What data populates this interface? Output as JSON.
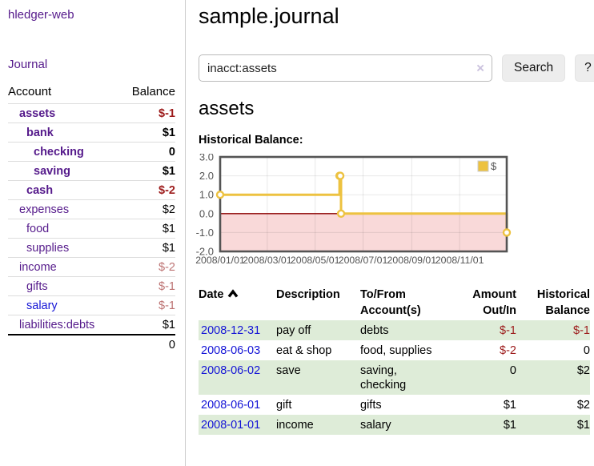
{
  "app": {
    "name": "hledger-web"
  },
  "sidebar": {
    "journal_link": "Journal",
    "table": {
      "headers": {
        "account": "Account",
        "balance": "Balance"
      },
      "rows": [
        {
          "account": "assets",
          "balance": "$-1",
          "indent": 1,
          "bold": true
        },
        {
          "account": "bank",
          "balance": "$1",
          "indent": 2,
          "bold": true
        },
        {
          "account": "checking",
          "balance": "0",
          "indent": 3,
          "bold": true
        },
        {
          "account": "saving",
          "balance": "$1",
          "indent": 3,
          "bold": true
        },
        {
          "account": "cash",
          "balance": "$-2",
          "indent": 2,
          "bold": true
        },
        {
          "account": "expenses",
          "balance": "$2",
          "indent": 1,
          "bold": false
        },
        {
          "account": "food",
          "balance": "$1",
          "indent": 2,
          "bold": false
        },
        {
          "account": "supplies",
          "balance": "$1",
          "indent": 2,
          "bold": false
        },
        {
          "account": "income",
          "balance": "$-2",
          "indent": 1,
          "bold": false
        },
        {
          "account": "gifts",
          "balance": "$-1",
          "indent": 2,
          "bold": false
        },
        {
          "account": "salary",
          "balance": "$-1",
          "indent": 2,
          "bold": false,
          "blue": true
        },
        {
          "account": "liabilities:debts",
          "balance": "$1",
          "indent": 1,
          "bold": false
        }
      ],
      "total": "0"
    }
  },
  "main": {
    "title": "sample.journal",
    "search": {
      "value": "inacct:assets",
      "clear_icon": "×",
      "button": "Search",
      "help_button": "?"
    },
    "account_heading": "assets"
  },
  "chart_data": {
    "type": "line",
    "title": "Historical Balance:",
    "step": true,
    "series": [
      {
        "name": "$",
        "color": "#edc240",
        "points": [
          {
            "x": "2008-01-01",
            "y": 1
          },
          {
            "x": "2008-06-01",
            "y": 2
          },
          {
            "x": "2008-06-02",
            "y": 2
          },
          {
            "x": "2008-06-03",
            "y": 0
          },
          {
            "x": "2008-12-31",
            "y": -1
          }
        ]
      }
    ],
    "x_ticks": [
      "2008/01/01",
      "2008/03/01",
      "2008/05/01",
      "2008/07/01",
      "2008/09/01",
      "2008/11/01"
    ],
    "y_ticks": [
      3.0,
      2.0,
      1.0,
      0.0,
      -1.0,
      -2.0
    ],
    "xlim": [
      "2008/01/01",
      "2008/12/31"
    ],
    "ylim": [
      -2,
      3
    ],
    "grid": true,
    "legend": {
      "label": "$",
      "position": "top-right"
    },
    "colors": {
      "border": "#545454",
      "gridline": "rgba(0,0,0,0.09)",
      "zero_line": "#8b0000",
      "negative_region": "#f9d9d9",
      "tick_text": "#545454",
      "marker_fill": "#ffffff"
    }
  },
  "register": {
    "columns": [
      {
        "label": "Date",
        "align": "left",
        "sorted": "asc"
      },
      {
        "label": "Description",
        "align": "left"
      },
      {
        "label": "To/From\nAccount(s)",
        "align": "left"
      },
      {
        "label": "Amount\nOut/In",
        "align": "right"
      },
      {
        "label": "Historical\nBalance",
        "align": "right"
      }
    ],
    "rows": [
      {
        "date": "2008-12-31",
        "description": "pay off",
        "accounts": "debts",
        "amount": "$-1",
        "balance": "$-1"
      },
      {
        "date": "2008-06-03",
        "description": "eat & shop",
        "accounts": "food, supplies",
        "amount": "$-2",
        "balance": "0"
      },
      {
        "date": "2008-06-02",
        "description": "save",
        "accounts": "saving,\nchecking",
        "amount": "0",
        "balance": "$2"
      },
      {
        "date": "2008-06-01",
        "description": "gift",
        "accounts": "gifts",
        "amount": "$1",
        "balance": "$2"
      },
      {
        "date": "2008-01-01",
        "description": "income",
        "accounts": "salary",
        "amount": "$1",
        "balance": "$1"
      }
    ]
  }
}
